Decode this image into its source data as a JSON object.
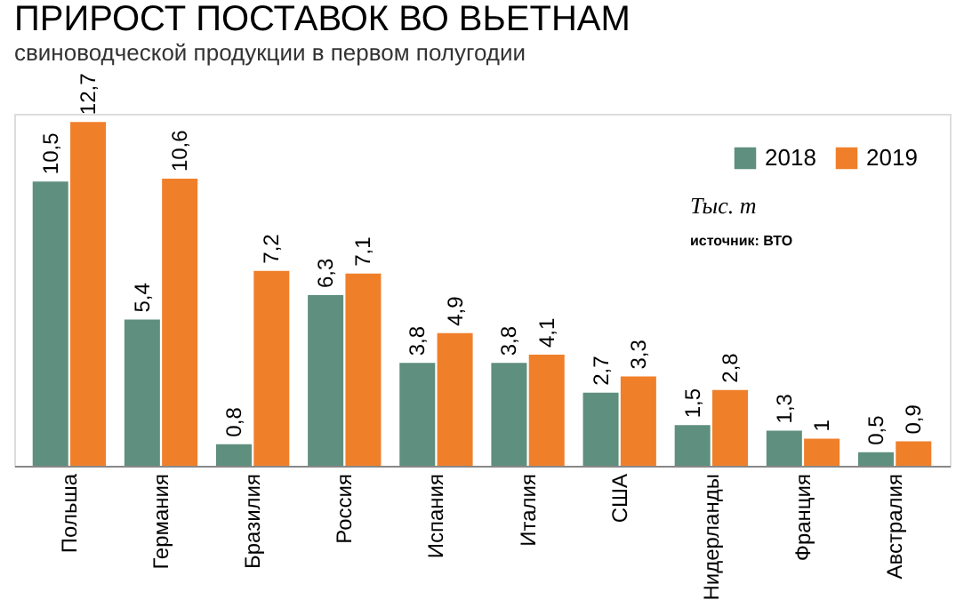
{
  "chart_data": {
    "type": "bar",
    "title": "ПРИРОСТ ПОСТАВОК ВО ВЬЕТНАМ",
    "subtitle": "свиноводческой продукции в первом полугодии",
    "categories": [
      "Польша",
      "Германия",
      "Бразилия",
      "Россия",
      "Испания",
      "Италия",
      "США",
      "Нидерланды",
      "Франция",
      "Австралия"
    ],
    "series": [
      {
        "name": "2018",
        "color": "#5f8f7e",
        "values": [
          10.5,
          5.4,
          0.8,
          6.3,
          3.8,
          3.8,
          2.7,
          1.5,
          1.3,
          0.5
        ],
        "value_labels": [
          "10,5",
          "5,4",
          "0,8",
          "6,3",
          "3,8",
          "3,8",
          "2,7",
          "1,5",
          "1,3",
          "0,5"
        ]
      },
      {
        "name": "2019",
        "color": "#f07f2a",
        "values": [
          12.7,
          10.6,
          7.2,
          7.1,
          4.9,
          4.1,
          3.3,
          2.8,
          1,
          0.9
        ],
        "value_labels": [
          "12,7",
          "10,6",
          "7,2",
          "7,1",
          "4,9",
          "4,1",
          "3,3",
          "2,8",
          "1",
          "0,9"
        ]
      }
    ],
    "legend": "top right",
    "grid": false,
    "annotations": [
      "Тыс. т",
      "источник: ВТО"
    ]
  }
}
